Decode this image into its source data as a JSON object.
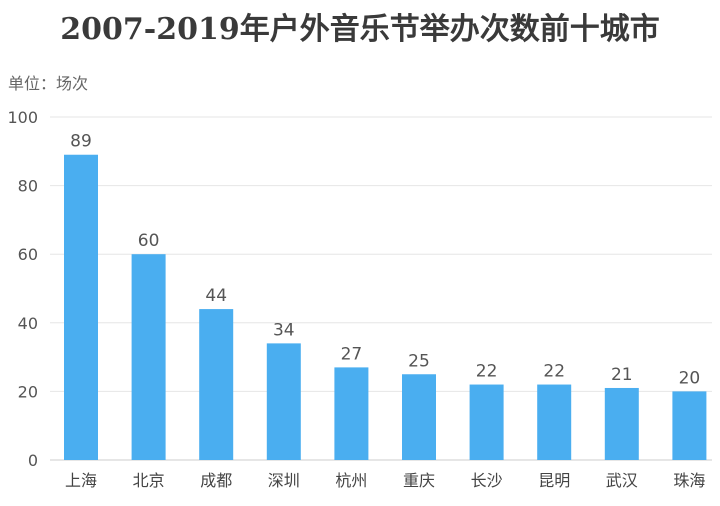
{
  "chart_data": {
    "type": "bar",
    "title": "2007-2019年户外音乐节举办次数前十城市",
    "unit_label": "单位：场次",
    "categories": [
      "上海",
      "北京",
      "成都",
      "深圳",
      "杭州",
      "重庆",
      "长沙",
      "昆明",
      "武汉",
      "珠海"
    ],
    "values": [
      89,
      60,
      44,
      34,
      27,
      25,
      22,
      22,
      21,
      20
    ],
    "ylim": [
      0,
      100
    ],
    "yticks": [
      0,
      20,
      40,
      60,
      80,
      100
    ],
    "grid": true,
    "legend": "none",
    "colors": {
      "bar": "#4aaef0",
      "grid": "#e6e6e6",
      "axis": "#cccccc"
    }
  }
}
